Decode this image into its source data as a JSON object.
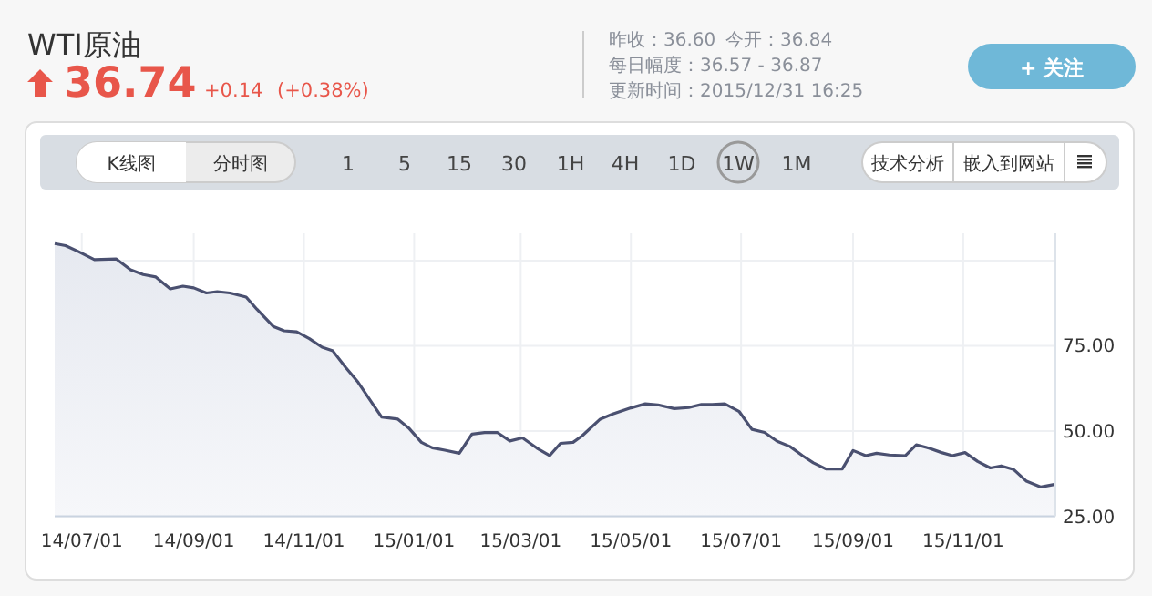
{
  "chart_data": {
    "type": "area",
    "title": "WTI原油",
    "annotations": [
      "36.74",
      "+0.14",
      "(+0.38%)",
      "昨收：36.60",
      "今开：36.84",
      "每日幅度：36.57 - 36.87",
      "更新时间：2015/12/31 16:25",
      "+ 关注",
      "K线图",
      "分时图",
      "1 5 15 30 1H 4H 1D 1W 1M",
      "技术分析",
      "嵌入到网站"
    ],
    "x": [
      "2014-06-16",
      "2014-06-22",
      "2014-06-29",
      "2014-07-08",
      "2014-07-20",
      "2014-07-28",
      "2014-08-04",
      "2014-08-11",
      "2014-08-19",
      "2014-08-26",
      "2014-09-01",
      "2014-09-08",
      "2014-09-14",
      "2014-09-21",
      "2014-09-30",
      "2014-10-06",
      "2014-10-15",
      "2014-10-21",
      "2014-10-28",
      "2014-11-04",
      "2014-11-11",
      "2014-11-17",
      "2014-11-24",
      "2014-12-01",
      "2014-12-09",
      "2014-12-14",
      "2014-12-23",
      "2014-12-29",
      "2015-01-05",
      "2015-01-11",
      "2015-01-18",
      "2015-01-26",
      "2015-02-02",
      "2015-02-09",
      "2015-02-16",
      "2015-02-23",
      "2015-03-02",
      "2015-03-10",
      "2015-03-17",
      "2015-03-23",
      "2015-03-30",
      "2015-04-04",
      "2015-04-14",
      "2015-04-21",
      "2015-05-01",
      "2015-05-09",
      "2015-05-16",
      "2015-05-25",
      "2015-06-02",
      "2015-06-09",
      "2015-06-15",
      "2015-06-22",
      "2015-06-30",
      "2015-07-07",
      "2015-07-14",
      "2015-07-21",
      "2015-07-28",
      "2015-08-04",
      "2015-08-10",
      "2015-08-17",
      "2015-08-26",
      "2015-09-01",
      "2015-09-08",
      "2015-09-14",
      "2015-09-21",
      "2015-09-30",
      "2015-10-06",
      "2015-10-13",
      "2015-10-20",
      "2015-10-26",
      "2015-11-02",
      "2015-11-09",
      "2015-11-16",
      "2015-11-22",
      "2015-11-29",
      "2015-12-06",
      "2015-12-14",
      "2015-12-22"
    ],
    "series": [
      {
        "color": "#4a5070",
        "values": [
          105.0,
          104.4,
          102.7,
          100.3,
          100.5,
          97.3,
          95.9,
          95.2,
          91.7,
          92.5,
          92.0,
          90.5,
          90.9,
          90.5,
          89.3,
          85.7,
          80.7,
          79.4,
          79.1,
          77.1,
          74.6,
          73.5,
          68.7,
          64.3,
          58.0,
          54.1,
          53.5,
          50.9,
          46.7,
          45.1,
          44.4,
          43.5,
          49.1,
          49.6,
          49.6,
          47.1,
          48.0,
          45.0,
          42.8,
          46.4,
          46.7,
          48.6,
          53.5,
          55.0,
          56.8,
          58.0,
          57.7,
          56.6,
          56.9,
          57.8,
          57.8,
          58.0,
          55.7,
          50.5,
          49.6,
          47.0,
          45.5,
          42.8,
          40.7,
          38.9,
          38.9,
          44.3,
          42.8,
          43.5,
          43.0,
          42.8,
          46.0,
          45.0,
          43.7,
          42.8,
          43.7,
          41.1,
          39.2,
          39.8,
          38.7,
          35.3,
          33.6,
          34.4
        ]
      }
    ],
    "xlim": [
      "2014-06-16",
      "2015-12-22"
    ],
    "xticks": [
      {
        "value": "2014-07-01",
        "label": "14/07/01"
      },
      {
        "value": "2014-09-01",
        "label": "14/09/01"
      },
      {
        "value": "2014-11-01",
        "label": "14/11/01"
      },
      {
        "value": "2015-01-01",
        "label": "15/01/01"
      },
      {
        "value": "2015-03-01",
        "label": "15/03/01"
      },
      {
        "value": "2015-05-01",
        "label": "15/05/01"
      },
      {
        "value": "2015-07-01",
        "label": "15/07/01"
      },
      {
        "value": "2015-09-01",
        "label": "15/09/01"
      },
      {
        "value": "2015-11-01",
        "label": "15/11/01"
      }
    ],
    "ylim": [
      25,
      108
    ],
    "yticks": [
      {
        "value": 25,
        "label": "25.00"
      },
      {
        "value": 50,
        "label": "50.00"
      },
      {
        "value": 75,
        "label": "75.00"
      },
      {
        "value": 100,
        "label": null
      }
    ],
    "grid": true
  }
}
